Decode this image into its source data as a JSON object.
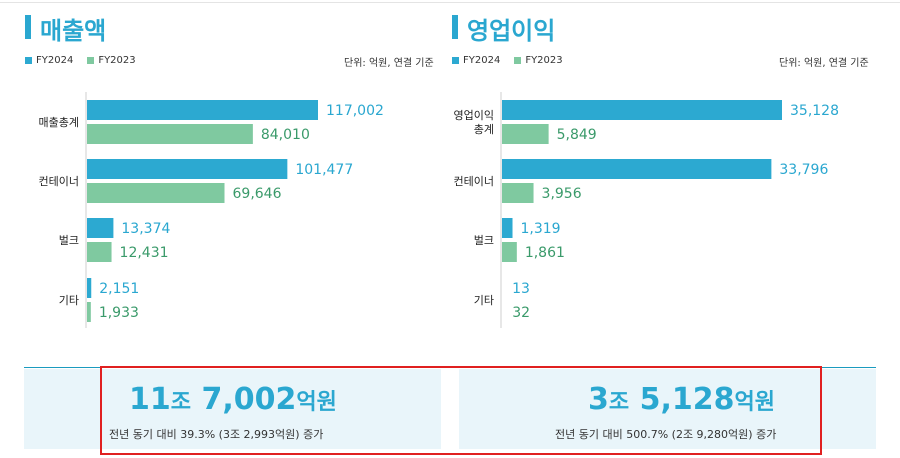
{
  "colors": {
    "fy2024": "#2ca9d1",
    "fy2023": "#7fc9a0",
    "title": "#2aa7d0",
    "highlight": "#e02020"
  },
  "legend": {
    "fy2024": "FY2024",
    "fy2023": "FY2023"
  },
  "revenue": {
    "title": "매출액",
    "unit": "단위: 억원, 연결 기준"
  },
  "operating_income": {
    "title": "영업이익",
    "unit": "단위: 억원, 연결 기준"
  },
  "summary": {
    "revenue": {
      "amount_a": "11",
      "unit_a": "조",
      "amount_b": " 7,002",
      "unit_b": "억원",
      "note": "전년 동기 대비 39.3% (3조 2,993억원) 증가"
    },
    "operating_income": {
      "amount_a": "3",
      "unit_a": "조",
      "amount_b": " 5,128",
      "unit_b": "억원",
      "note": "전년 동기 대비 500.7% (2조 9,280억원) 증가"
    }
  },
  "chart_data": [
    {
      "type": "bar",
      "orientation": "horizontal",
      "title": "매출액",
      "unit": "단위: 억원, 연결 기준",
      "categories": [
        "매출총계",
        "컨테이너",
        "벌크",
        "기타"
      ],
      "series": [
        {
          "name": "FY2024",
          "values": [
            117002,
            101477,
            13374,
            2151
          ],
          "labels": [
            "117,002",
            "101,477",
            "13,374",
            "2,151"
          ]
        },
        {
          "name": "FY2023",
          "values": [
            84010,
            69646,
            12431,
            1933
          ],
          "labels": [
            "84,010",
            "69,646",
            "12,431",
            "1,933"
          ]
        }
      ],
      "xlim": [
        0,
        117002
      ],
      "legend": "top-left",
      "grid": false
    },
    {
      "type": "bar",
      "orientation": "horizontal",
      "title": "영업이익",
      "unit": "단위: 억원, 연결 기준",
      "categories": [
        "영업이익\n총계",
        "컨테이너",
        "벌크",
        "기타"
      ],
      "series": [
        {
          "name": "FY2024",
          "values": [
            35128,
            33796,
            1319,
            13
          ],
          "labels": [
            "35,128",
            "33,796",
            "1,319",
            "13"
          ]
        },
        {
          "name": "FY2023",
          "values": [
            5849,
            3956,
            1861,
            32
          ],
          "labels": [
            "5,849",
            "3,956",
            "1,861",
            "32"
          ]
        }
      ],
      "xlim": [
        0,
        35128
      ],
      "legend": "top-left",
      "grid": false
    }
  ]
}
